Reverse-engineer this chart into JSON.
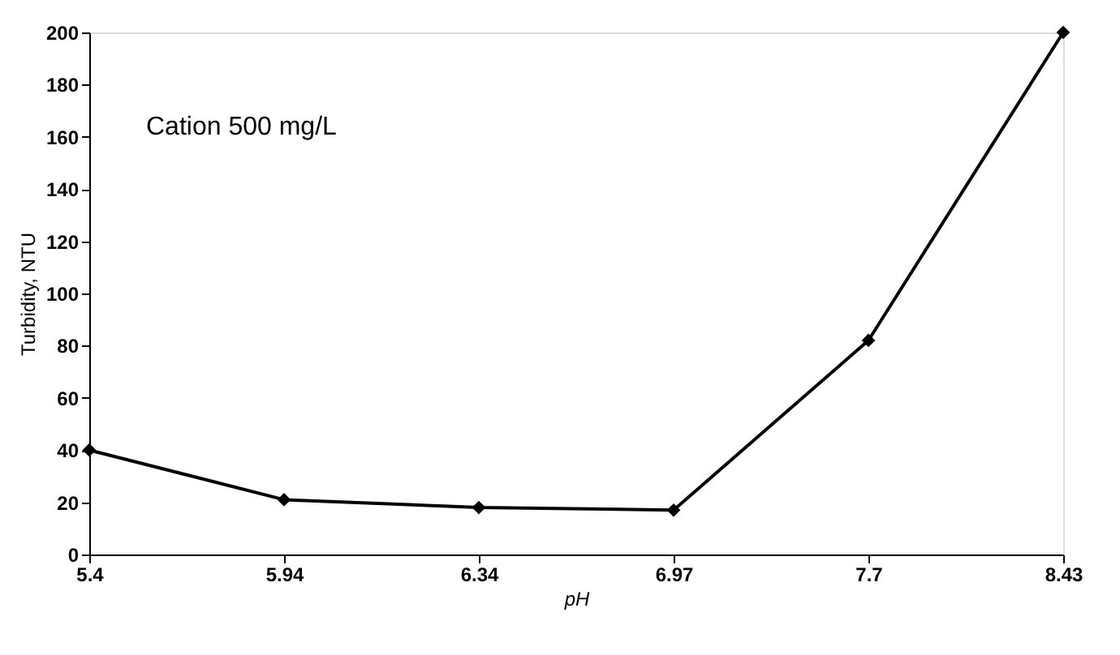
{
  "chart_data": {
    "type": "line",
    "xlabel": "pH",
    "ylabel": "Turbidity, NTU",
    "categories": [
      "5.4",
      "5.94",
      "6.34",
      "6.97",
      "7.7",
      "8.43"
    ],
    "series": [
      {
        "color": "#000000",
        "values": [
          40,
          21,
          18,
          17,
          82,
          200
        ]
      }
    ],
    "ylim": [
      0,
      200
    ],
    "yticks": [
      0,
      20,
      40,
      60,
      80,
      100,
      120,
      140,
      160,
      180,
      200
    ],
    "marker": "diamond",
    "line_style": "solid",
    "grid": false,
    "annotations": [
      "Cation 500 mg/L"
    ]
  }
}
